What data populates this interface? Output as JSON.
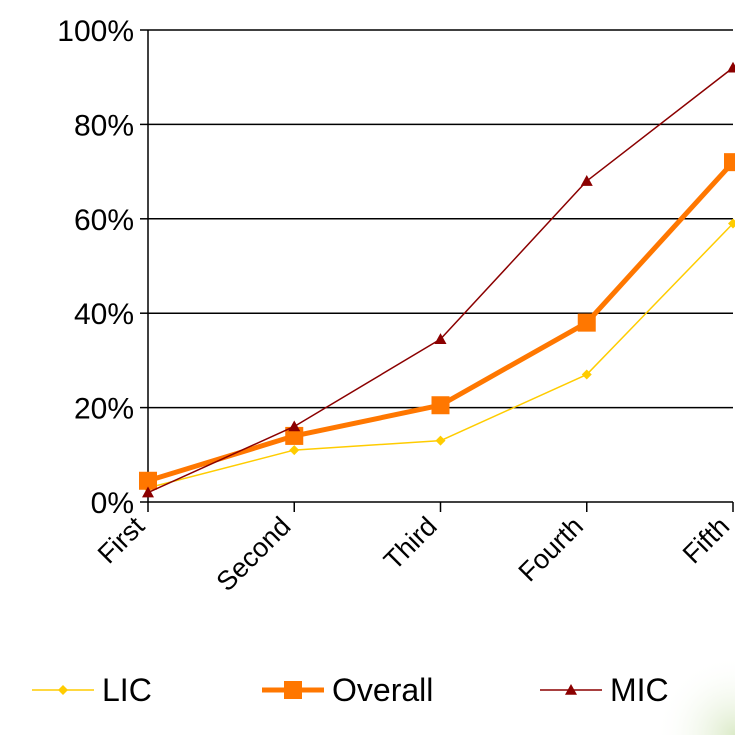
{
  "chart_data": {
    "type": "line",
    "categories": [
      "First",
      "Second",
      "Third",
      "Fourth",
      "Fifth"
    ],
    "series": [
      {
        "name": "LIC",
        "values": [
          3,
          11,
          13,
          27,
          59
        ],
        "color": "#FFCC00",
        "marker": "diamond"
      },
      {
        "name": "Overall",
        "values": [
          4.5,
          14,
          20.5,
          38,
          72
        ],
        "color": "#FF7700",
        "marker": "square"
      },
      {
        "name": "MIC",
        "values": [
          2,
          16,
          34.5,
          68,
          92
        ],
        "color": "#8B0000",
        "marker": "triangle"
      }
    ],
    "y_ticks": [
      "0%",
      "20%",
      "40%",
      "60%",
      "80%",
      "100%"
    ],
    "ylim": [
      0,
      100
    ],
    "grid": true,
    "legend_position": "bottom"
  }
}
